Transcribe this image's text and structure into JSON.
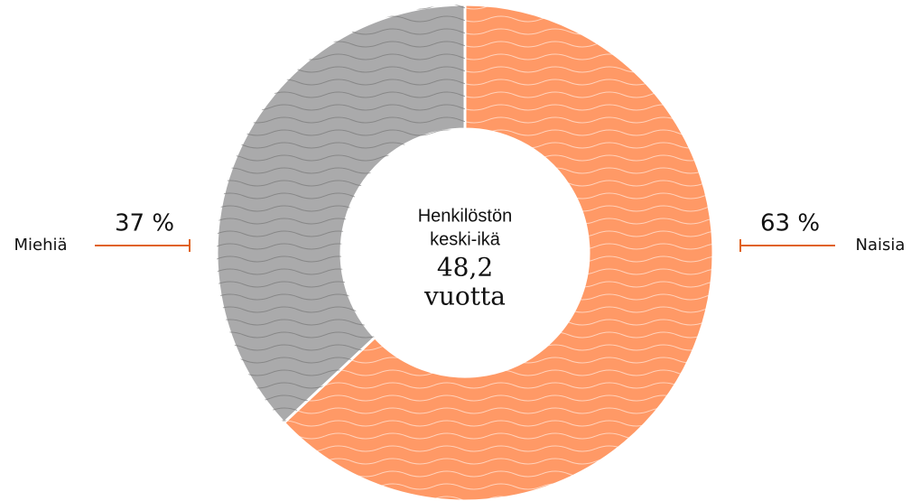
{
  "chart_data": {
    "type": "donut",
    "categories": [
      "Naisia",
      "Miehiä"
    ],
    "values": [
      63,
      37
    ],
    "value_labels": [
      "63 %",
      "37 %"
    ],
    "colors": [
      "#ff9966",
      "#aaaaab"
    ],
    "center_lines": [
      "Henkilöstön",
      "keski-ikä",
      "48,2",
      "vuotta"
    ]
  }
}
